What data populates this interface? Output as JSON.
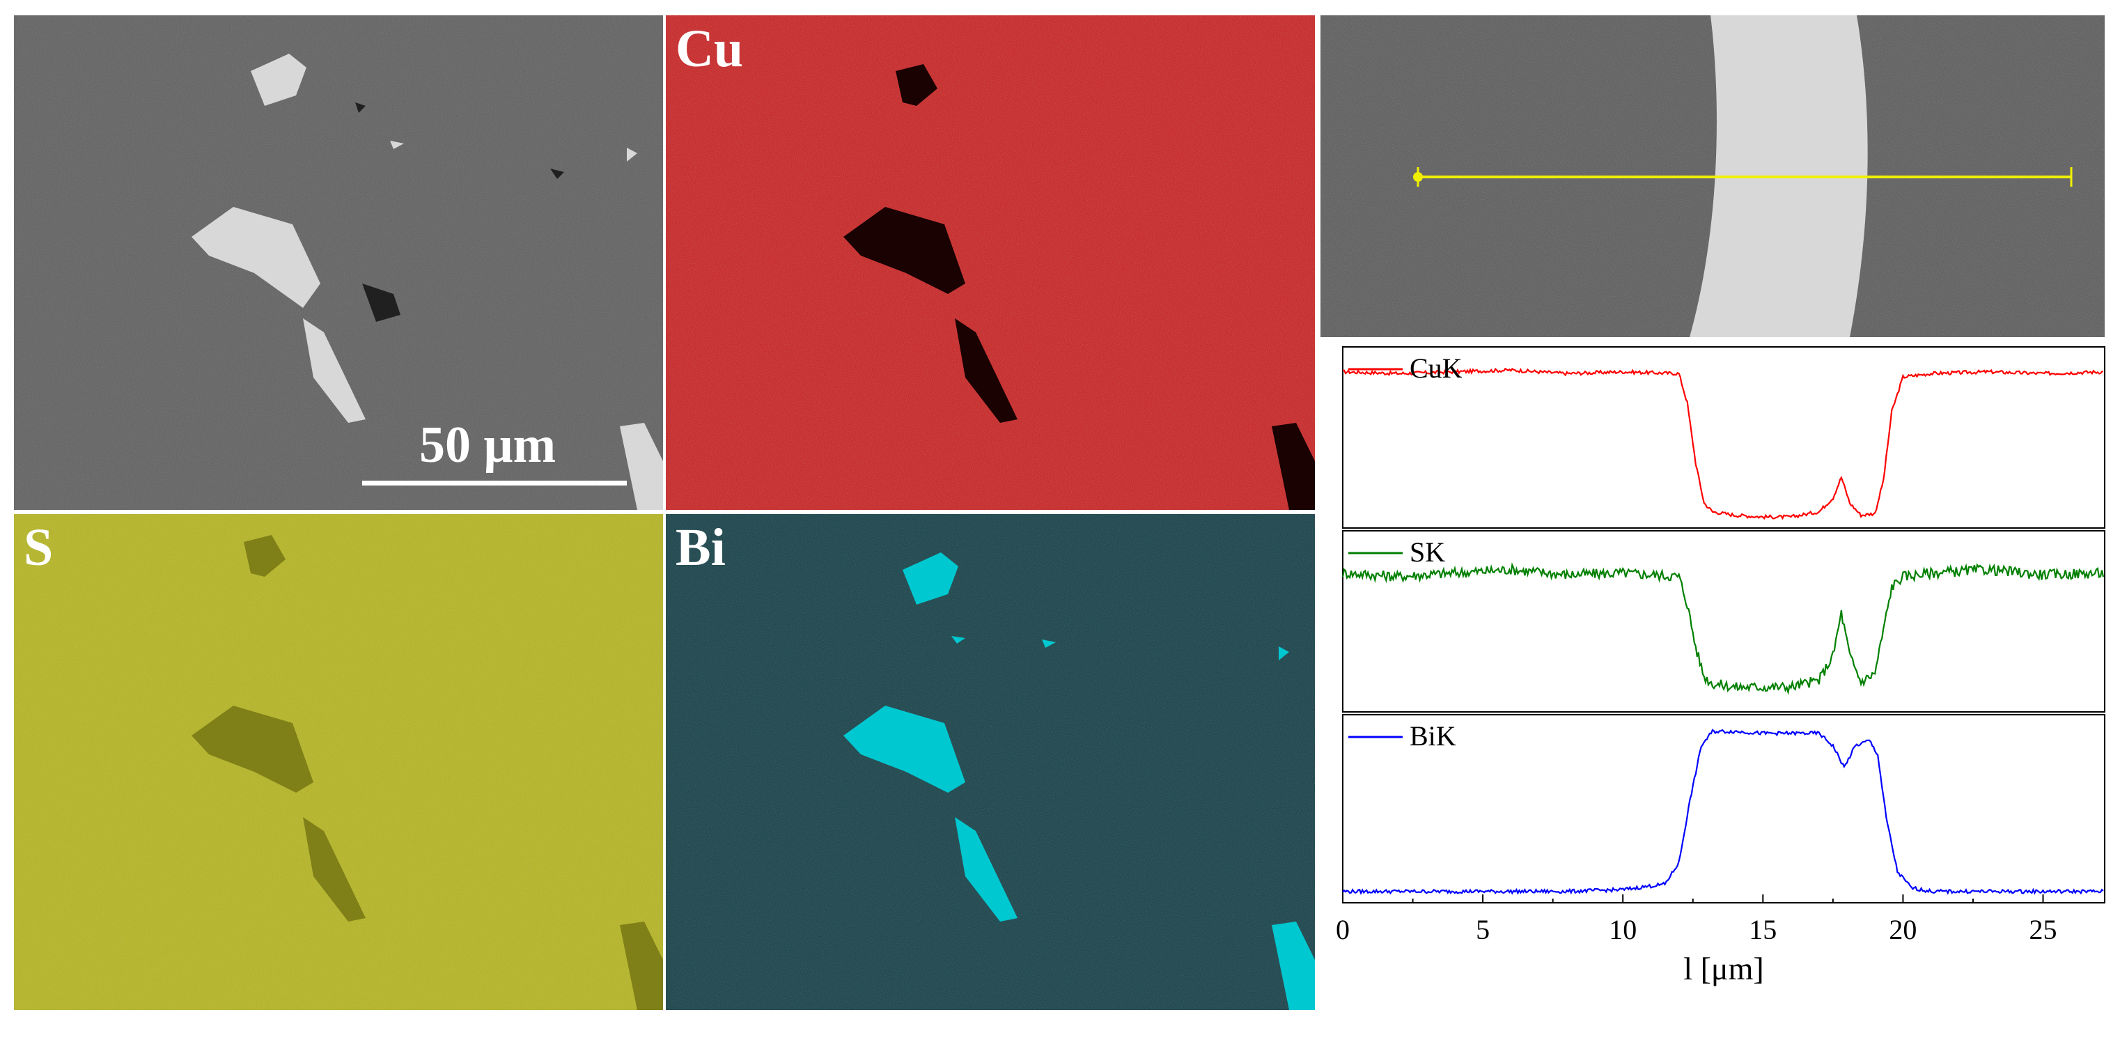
{
  "figure": {
    "panels": {
      "sem": {
        "scale_bar_label": "50 μm"
      },
      "cu_map": {
        "label": "Cu",
        "color": "#cc1010"
      },
      "s_map": {
        "label": "S",
        "color": "#b5b512"
      },
      "bi_map": {
        "label": "Bi",
        "color": "#00c8d0"
      }
    }
  },
  "chart_data": {
    "type": "line",
    "xlabel": "l [μm]",
    "xlim": [
      0,
      27.2
    ],
    "x_ticks": [
      "0",
      "5",
      "10",
      "15",
      "20",
      "25"
    ],
    "x_tick_values": [
      0,
      5,
      10,
      15,
      20,
      25
    ],
    "grid": false,
    "legend_placement": "top-left of each subplot",
    "series": [
      {
        "name": "CuK",
        "color": "#ff0000",
        "x": [
          0,
          2,
          4,
          6,
          8,
          10,
          12,
          12.3,
          12.6,
          12.9,
          13.2,
          14,
          15,
          16,
          17,
          17.5,
          17.8,
          18.1,
          18.5,
          19,
          19.3,
          19.6,
          20,
          21,
          23,
          25,
          27.2
        ],
        "y": [
          0.88,
          0.87,
          0.88,
          0.89,
          0.87,
          0.88,
          0.87,
          0.7,
          0.35,
          0.12,
          0.07,
          0.05,
          0.04,
          0.04,
          0.07,
          0.15,
          0.27,
          0.12,
          0.05,
          0.06,
          0.25,
          0.65,
          0.85,
          0.87,
          0.88,
          0.87,
          0.88
        ]
      },
      {
        "name": "SK",
        "color": "#008000",
        "x": [
          0,
          2,
          4,
          6,
          8,
          10,
          12,
          12.3,
          12.6,
          12.9,
          13.2,
          14,
          15,
          16,
          17,
          17.5,
          17.8,
          18.1,
          18.5,
          19,
          19.3,
          19.6,
          20,
          21,
          23,
          25,
          27.2
        ],
        "y": [
          0.78,
          0.76,
          0.78,
          0.8,
          0.77,
          0.78,
          0.76,
          0.6,
          0.35,
          0.18,
          0.14,
          0.12,
          0.12,
          0.12,
          0.16,
          0.3,
          0.55,
          0.3,
          0.15,
          0.2,
          0.45,
          0.7,
          0.76,
          0.78,
          0.8,
          0.77,
          0.78
        ]
      },
      {
        "name": "BiK",
        "color": "#0000ff",
        "x": [
          0,
          2,
          4,
          6,
          8,
          10,
          11.5,
          12,
          12.4,
          12.8,
          13.2,
          14,
          15,
          16,
          17,
          17.5,
          17.9,
          18.3,
          18.8,
          19.1,
          19.4,
          19.8,
          20.3,
          21,
          23,
          25,
          27.2
        ],
        "y": [
          0.04,
          0.04,
          0.04,
          0.04,
          0.04,
          0.05,
          0.08,
          0.2,
          0.55,
          0.85,
          0.93,
          0.93,
          0.92,
          0.92,
          0.92,
          0.85,
          0.73,
          0.85,
          0.88,
          0.8,
          0.45,
          0.15,
          0.06,
          0.04,
          0.04,
          0.04,
          0.04
        ]
      }
    ]
  }
}
